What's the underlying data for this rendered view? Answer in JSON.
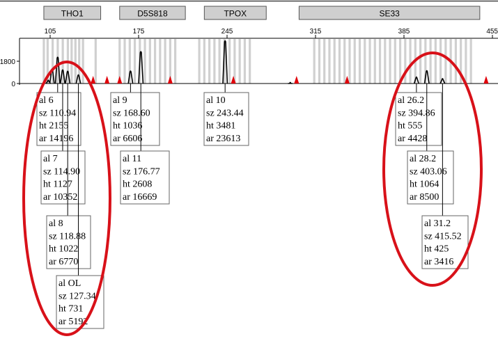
{
  "header_fragments": [
    "",
    ""
  ],
  "colors": {
    "marker_bar": "#cfcfcf",
    "marker_bar_border": "#555555",
    "bin_shade": "#d0d0d0",
    "trace": "#000000",
    "ladder_triangle": "#e0000a",
    "annotation_circle": "#d81119"
  },
  "chart_data": {
    "type": "line",
    "title": "",
    "xlabel": "",
    "ylabel": "",
    "x_range": [
      95,
      455
    ],
    "x_ticks": [
      105,
      175,
      245,
      315,
      385,
      455
    ],
    "y_range": [
      0,
      3600
    ],
    "y_ticks": [
      0,
      1800
    ],
    "markers": [
      {
        "name": "THO1",
        "range": [
          100,
          145
        ]
      },
      {
        "name": "D5S818",
        "range": [
          160,
          212
        ]
      },
      {
        "name": "TPOX",
        "range": [
          227,
          276
        ]
      },
      {
        "name": "SE33",
        "range": [
          302,
          445
        ]
      }
    ],
    "ladder_peaks": [
      139,
      150,
      160,
      200,
      250,
      300,
      340,
      450
    ],
    "bins": [
      100,
      103,
      107,
      111,
      115,
      119,
      122,
      125,
      128,
      131,
      141,
      160,
      164,
      168,
      172,
      176,
      180,
      184,
      188,
      192,
      196,
      200,
      204,
      223,
      227,
      231,
      235,
      239,
      243,
      247,
      251,
      255,
      259,
      263,
      314,
      318,
      322,
      326,
      330,
      334,
      338,
      342,
      346,
      350,
      354,
      358,
      362,
      366,
      370,
      374,
      378,
      382,
      386,
      390,
      394,
      398,
      402,
      406,
      410,
      414,
      418,
      422,
      426,
      430,
      434,
      438
    ],
    "labeled_peaks": [
      {
        "allele": "6",
        "size": 110.94,
        "height": 2155,
        "area": 14196,
        "label_al": "al 6",
        "label_sz": "sz 110.94",
        "label_ht": "ht 2155",
        "label_ar": "ar 14196"
      },
      {
        "allele": "7",
        "size": 114.9,
        "height": 1127,
        "area": 10352,
        "label_al": "al 7",
        "label_sz": "sz 114.90",
        "label_ht": "ht 1127",
        "label_ar": "ar 10352"
      },
      {
        "allele": "8",
        "size": 118.88,
        "height": 1022,
        "area": 6770,
        "label_al": "al 8",
        "label_sz": "sz 118.88",
        "label_ht": "ht 1022",
        "label_ar": "ar 6770"
      },
      {
        "allele": "OL",
        "size": 127.34,
        "height": 731,
        "area": 5192,
        "label_al": "al OL",
        "label_sz": "sz 127.34",
        "label_ht": "ht 731",
        "label_ar": "ar 5192"
      },
      {
        "allele": "9",
        "size": 168.6,
        "height": 1036,
        "area": 6606,
        "label_al": "al 9",
        "label_sz": "sz 168.60",
        "label_ht": "ht 1036",
        "label_ar": "ar 6606"
      },
      {
        "allele": "11",
        "size": 176.77,
        "height": 2608,
        "area": 16669,
        "label_al": "al 11",
        "label_sz": "sz 176.77",
        "label_ht": "ht 2608",
        "label_ar": "ar 16669"
      },
      {
        "allele": "10",
        "size": 243.44,
        "height": 3481,
        "area": 23613,
        "label_al": "al 10",
        "label_sz": "sz 243.44",
        "label_ht": "ht 3481",
        "label_ar": "ar 23613"
      },
      {
        "allele": "26.2",
        "size": 394.86,
        "height": 555,
        "area": 4428,
        "label_al": "al 26.2",
        "label_sz": "sz 394.86",
        "label_ht": "ht 555",
        "label_ar": "ar 4428"
      },
      {
        "allele": "28.2",
        "size": 403.06,
        "height": 1064,
        "area": 8500,
        "label_al": "al 28.2",
        "label_sz": "sz 403.06",
        "label_ht": "ht 1064",
        "label_ar": "ar 8500"
      },
      {
        "allele": "31.2",
        "size": 415.52,
        "height": 425,
        "area": 3416,
        "label_al": "al 31.2",
        "label_sz": "sz 415.52",
        "label_ht": "ht 425",
        "label_ar": "ar 3416"
      }
    ],
    "minor_peaks": [
      {
        "size": 106.5,
        "height": 1200
      },
      {
        "size": 103.5,
        "height": 300
      },
      {
        "size": 295.0,
        "height": 120
      }
    ],
    "grid": false,
    "legend": "none"
  }
}
